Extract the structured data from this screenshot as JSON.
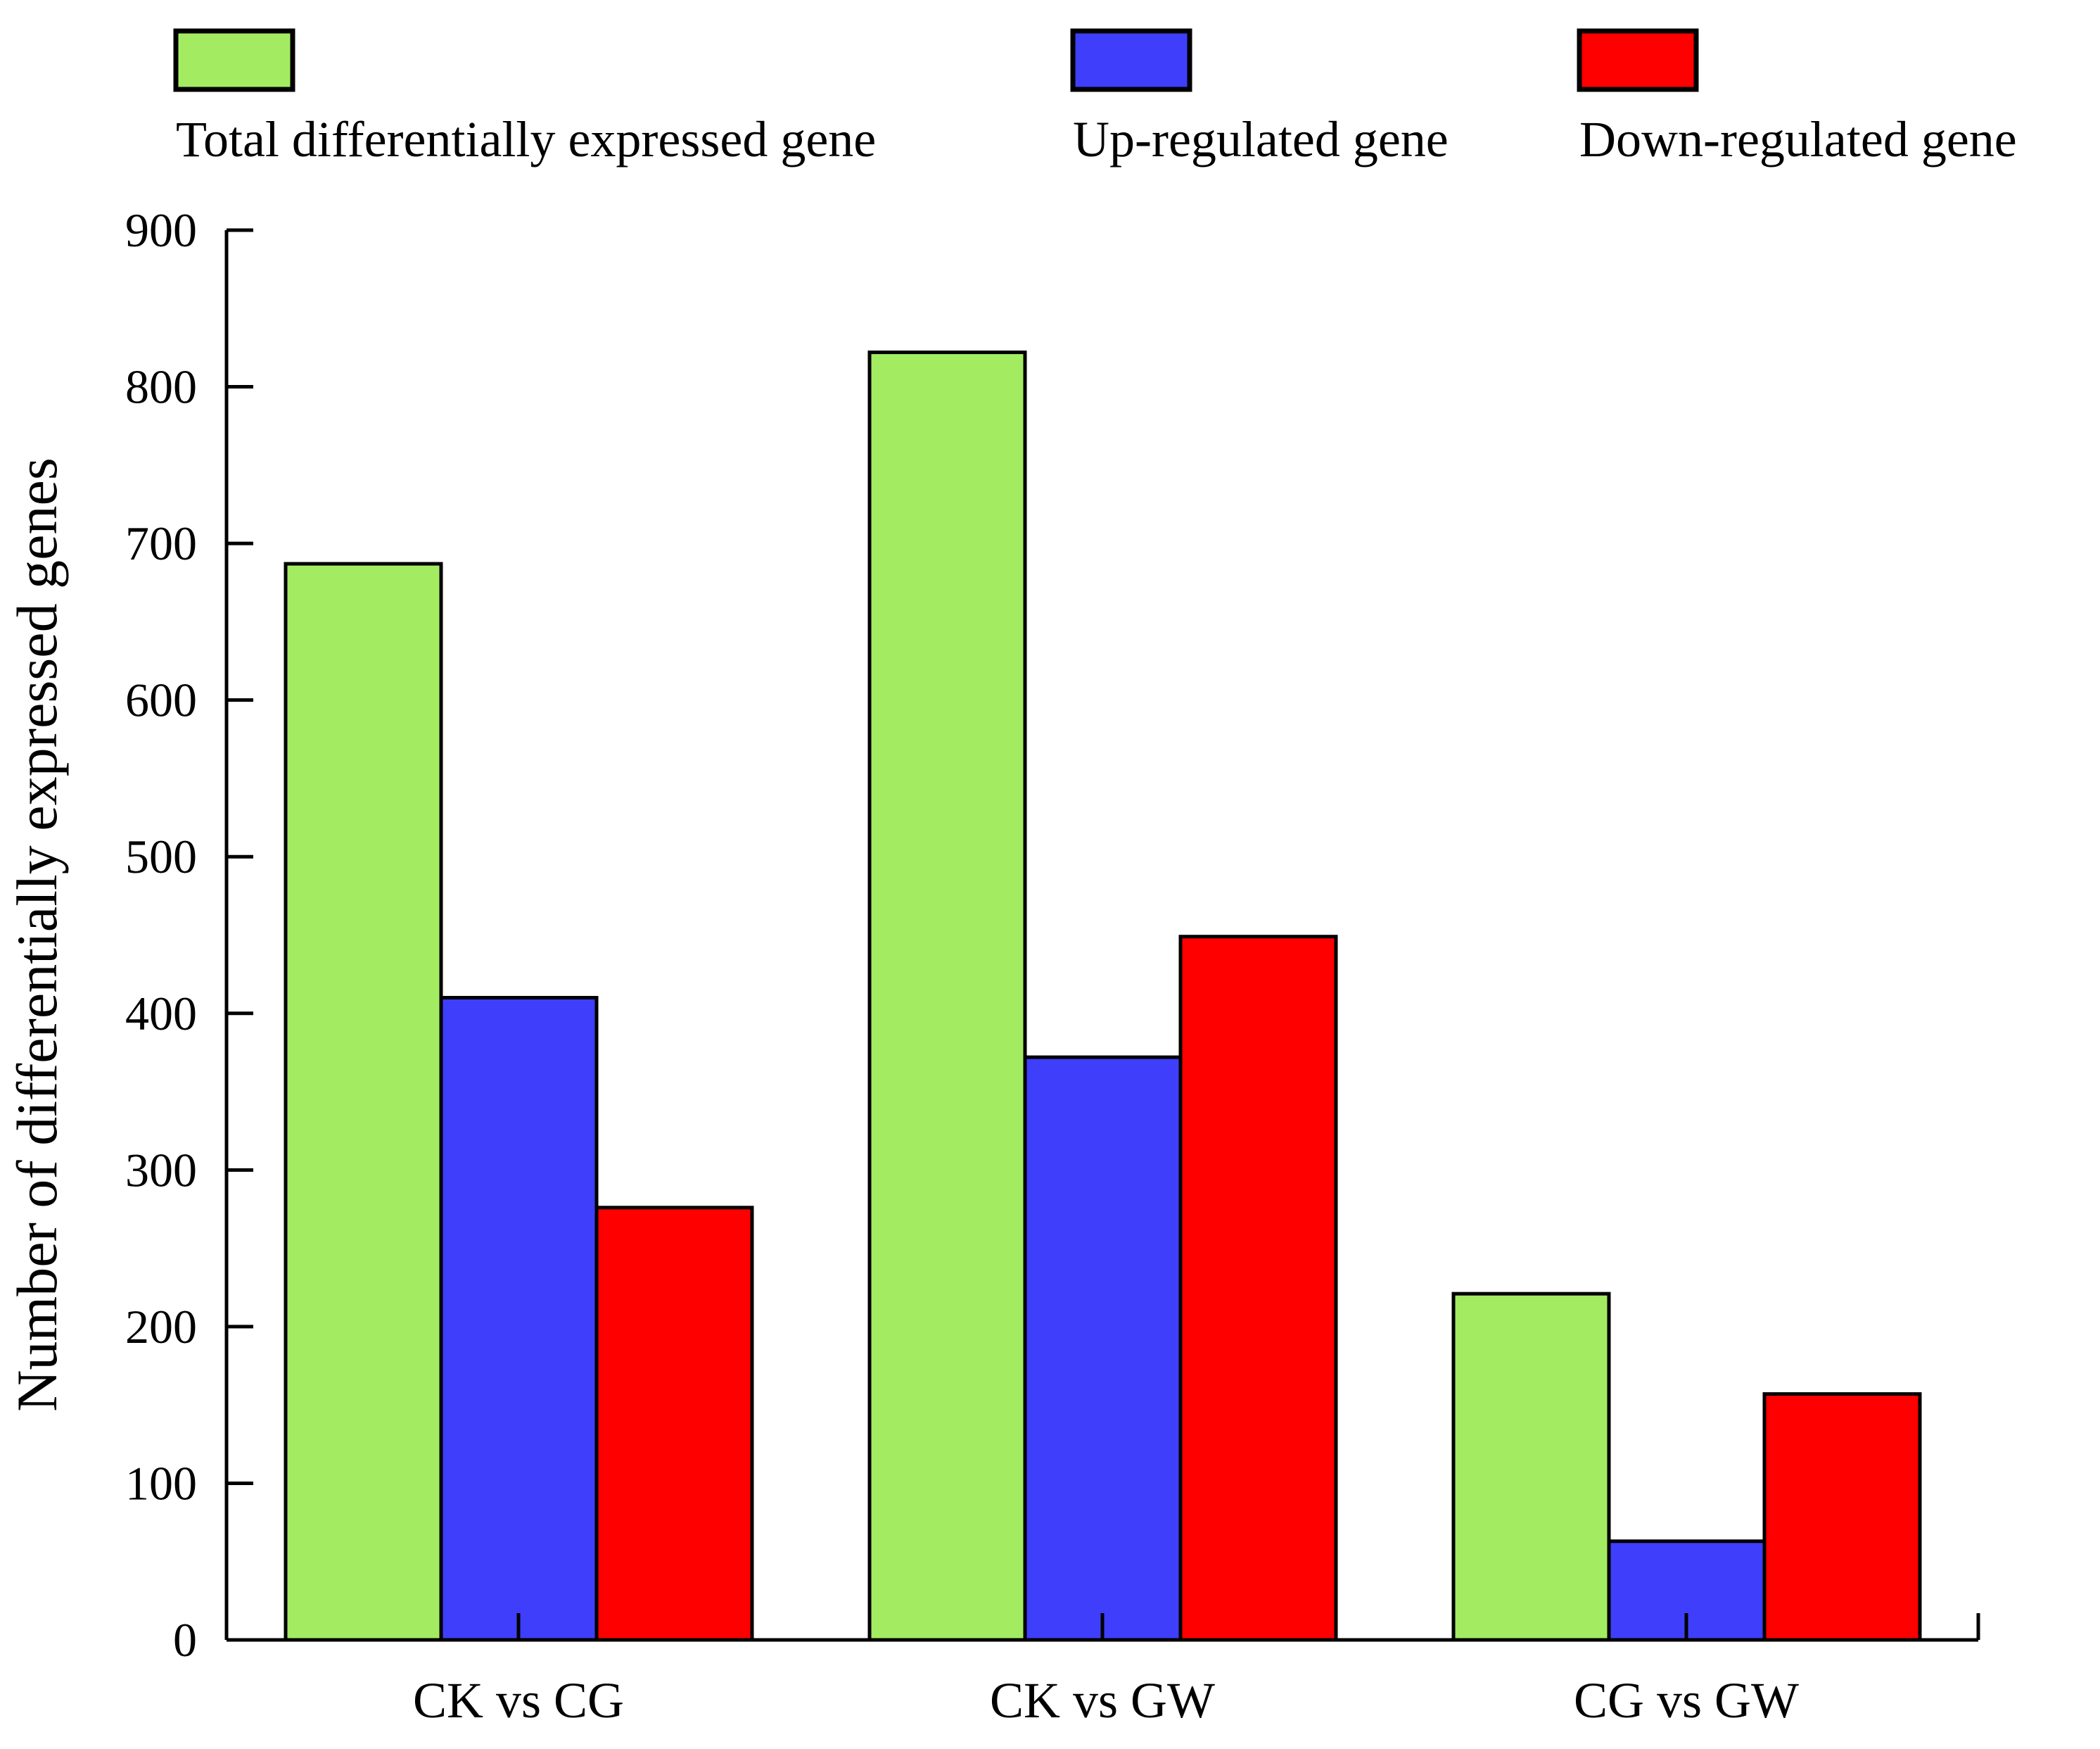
{
  "chart_data": {
    "type": "bar",
    "title": "",
    "xlabel": "",
    "ylabel": "Number of differentially expressed genes",
    "ylim": [
      0,
      900
    ],
    "yticks": [
      0,
      100,
      200,
      300,
      400,
      500,
      600,
      700,
      800,
      900
    ],
    "categories": [
      "CK vs CG",
      "CK vs GW",
      "CG vs GW"
    ],
    "series": [
      {
        "name": "Total differentially expressed gene",
        "color": "#a3ec62",
        "values": [
          687,
          822,
          221
        ]
      },
      {
        "name": "Up-regulated gene",
        "color": "#3e3efb",
        "values": [
          410,
          372,
          63
        ]
      },
      {
        "name": "Down-regulated gene",
        "color": "#ff0000",
        "values": [
          276,
          449,
          157
        ]
      }
    ],
    "legend_position": "top",
    "grid": false
  }
}
